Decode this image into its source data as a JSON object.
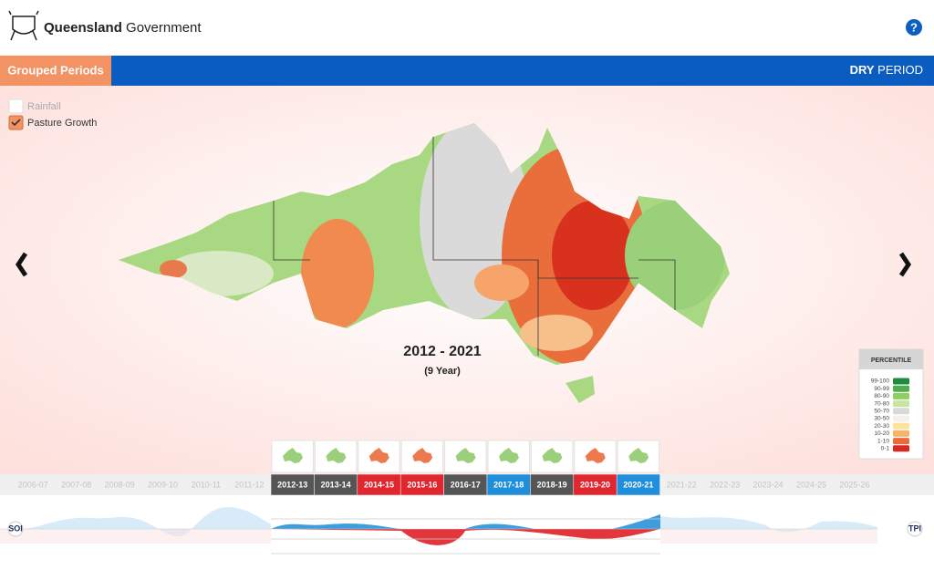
{
  "header": {
    "brand_bold": "Queensland",
    "brand_regular": "Government"
  },
  "tabs": {
    "left": "Grouped Periods",
    "right_bold": "DRY",
    "right_regular": "PERIOD"
  },
  "layers": [
    {
      "label": "Rainfall",
      "checked": false
    },
    {
      "label": "Pasture Growth",
      "checked": true
    }
  ],
  "period": {
    "title": "2012 - 2021",
    "subtitle": "(9 Year)"
  },
  "legend": {
    "title": "PERCENTILE",
    "items": [
      {
        "label": "99-100",
        "color": "#1e8b3e"
      },
      {
        "label": "90-99",
        "color": "#4fae4f"
      },
      {
        "label": "80-90",
        "color": "#8fcf5f"
      },
      {
        "label": "70-80",
        "color": "#c8e79c"
      },
      {
        "label": "50-70",
        "color": "#d9d9d9"
      },
      {
        "label": "30-50",
        "color": "#f4f1ea"
      },
      {
        "label": "20-30",
        "color": "#fde39a"
      },
      {
        "label": "10-20",
        "color": "#f9b36a"
      },
      {
        "label": "1-10",
        "color": "#ef6a3a"
      },
      {
        "label": "0-1",
        "color": "#d42a22"
      }
    ]
  },
  "timeline": {
    "years": [
      {
        "label": "2006-07",
        "selected": false
      },
      {
        "label": "2007-08",
        "selected": false
      },
      {
        "label": "2008-09",
        "selected": false
      },
      {
        "label": "2009-10",
        "selected": false
      },
      {
        "label": "2010-11",
        "selected": false
      },
      {
        "label": "2011-12",
        "selected": false
      },
      {
        "label": "2012-13",
        "selected": true,
        "color": "#555555"
      },
      {
        "label": "2013-14",
        "selected": true,
        "color": "#555555"
      },
      {
        "label": "2014-15",
        "selected": true,
        "color": "#e0262e"
      },
      {
        "label": "2015-16",
        "selected": true,
        "color": "#e0262e"
      },
      {
        "label": "2016-17",
        "selected": true,
        "color": "#555555"
      },
      {
        "label": "2017-18",
        "selected": true,
        "color": "#1f8fdc"
      },
      {
        "label": "2018-19",
        "selected": true,
        "color": "#555555"
      },
      {
        "label": "2019-20",
        "selected": true,
        "color": "#e0262e"
      },
      {
        "label": "2020-21",
        "selected": true,
        "color": "#1f8fdc"
      },
      {
        "label": "2021-22",
        "selected": false
      },
      {
        "label": "2022-23",
        "selected": false
      },
      {
        "label": "2023-24",
        "selected": false
      },
      {
        "label": "2024-25",
        "selected": false
      },
      {
        "label": "2025-26",
        "selected": false
      }
    ]
  },
  "indices": {
    "left": "SOI",
    "right": "TPI"
  }
}
